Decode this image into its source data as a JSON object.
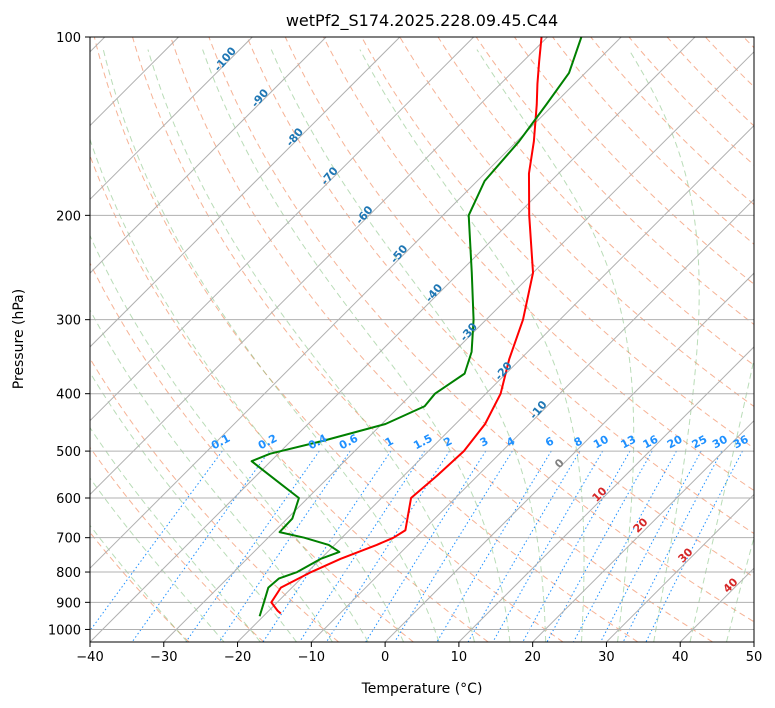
{
  "chart_data": {
    "type": "line",
    "subtype": "skew-t log-p diagram",
    "title": "wetPf2_S174.2025.228.09.45.C44",
    "xlabel": "Temperature (°C)",
    "ylabel": "Pressure (hPa)",
    "xlim": [
      -40,
      50
    ],
    "ylim": [
      1050,
      100
    ],
    "y_scale": "log",
    "x_ticks": [
      -40,
      -30,
      -20,
      -10,
      0,
      10,
      20,
      30,
      40,
      50
    ],
    "y_ticks": [
      100,
      200,
      300,
      400,
      500,
      600,
      700,
      800,
      900,
      1000
    ],
    "grid": true,
    "series": [
      {
        "role": "temperature",
        "color": "#ff0000",
        "points": [
          [
            940,
            -18.0
          ],
          [
            930,
            -18.8
          ],
          [
            900,
            -20.8
          ],
          [
            850,
            -21.5
          ],
          [
            800,
            -19.5
          ],
          [
            760,
            -17.3
          ],
          [
            720,
            -14.3
          ],
          [
            700,
            -13.0
          ],
          [
            680,
            -12.4
          ],
          [
            650,
            -13.7
          ],
          [
            600,
            -16.0
          ],
          [
            550,
            -15.5
          ],
          [
            500,
            -15.2
          ],
          [
            450,
            -16.0
          ],
          [
            400,
            -18.0
          ],
          [
            350,
            -21.5
          ],
          [
            300,
            -25.0
          ],
          [
            250,
            -30.0
          ],
          [
            200,
            -38.3
          ],
          [
            170,
            -44.0
          ],
          [
            150,
            -47.7
          ],
          [
            130,
            -52.3
          ],
          [
            120,
            -55.0
          ],
          [
            110,
            -57.8
          ],
          [
            100,
            -60.8
          ]
        ]
      },
      {
        "role": "dewpoint",
        "color": "#008000",
        "points": [
          [
            950,
            -20.5
          ],
          [
            900,
            -21.8
          ],
          [
            850,
            -23.2
          ],
          [
            820,
            -23.0
          ],
          [
            800,
            -21.4
          ],
          [
            760,
            -20.0
          ],
          [
            740,
            -18.4
          ],
          [
            720,
            -20.8
          ],
          [
            700,
            -25.1
          ],
          [
            685,
            -29.2
          ],
          [
            650,
            -29.3
          ],
          [
            600,
            -31.2
          ],
          [
            570,
            -35.3
          ],
          [
            540,
            -39.6
          ],
          [
            520,
            -42.6
          ],
          [
            505,
            -41.1
          ],
          [
            480,
            -35.6
          ],
          [
            450,
            -29.5
          ],
          [
            420,
            -26.6
          ],
          [
            400,
            -26.9
          ],
          [
            370,
            -25.6
          ],
          [
            340,
            -27.6
          ],
          [
            300,
            -31.7
          ],
          [
            250,
            -38.3
          ],
          [
            200,
            -46.5
          ],
          [
            175,
            -49.0
          ],
          [
            150,
            -49.7
          ],
          [
            130,
            -51.0
          ],
          [
            115,
            -52.2
          ],
          [
            100,
            -55.4
          ]
        ]
      }
    ],
    "isotherm_labels": [
      "-100",
      "-90",
      "-80",
      "-70",
      "-60",
      "-50",
      "-40",
      "-30",
      "-20",
      "-10"
    ],
    "mixing_ratio_labels": [
      "0.1",
      "0.2",
      "0.4",
      "0.6",
      "1",
      "1.5",
      "2",
      "3",
      "4",
      "6",
      "8",
      "10",
      "13",
      "16",
      "20",
      "25",
      "30",
      "36"
    ],
    "moist_adiabat_labels": [
      "0",
      "10",
      "20",
      "30",
      "40"
    ],
    "colors": {
      "temperature": "#ff0000",
      "dewpoint": "#008000",
      "dry_adiabats": "#f4a582",
      "moist_adiabats": "#7fbf7b",
      "mixing_ratio": "#1e90ff",
      "isotherm_labels": "#1f77b4",
      "grid": "#b0b0b0"
    }
  }
}
